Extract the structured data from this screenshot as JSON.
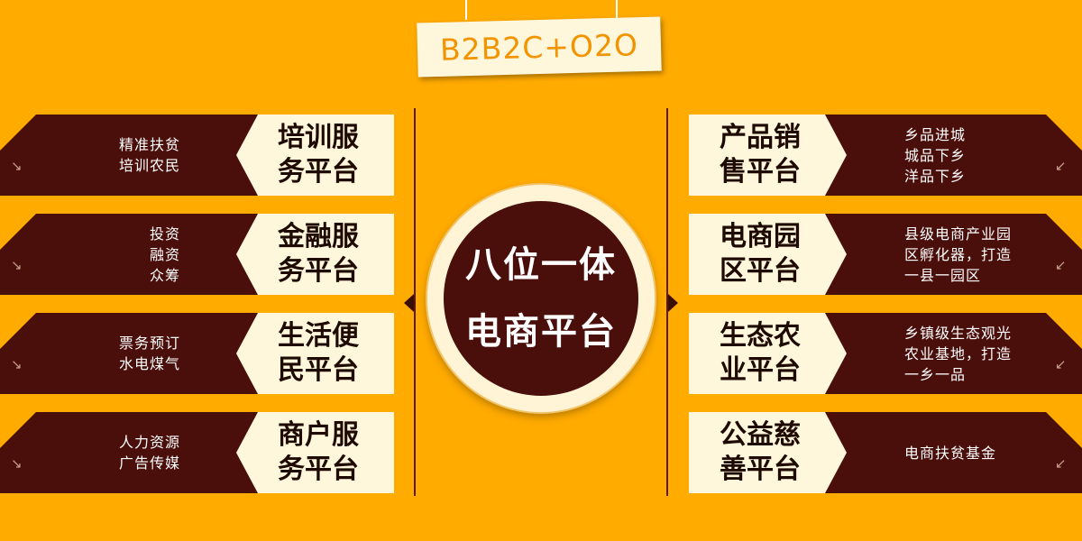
{
  "banner": "B2B2C+O2O",
  "center": {
    "line1": "八位一体",
    "line2": "电商平台"
  },
  "left": [
    {
      "title1": "培训服",
      "title2": "务平台",
      "desc": [
        "精准扶贫",
        "培训农民"
      ]
    },
    {
      "title1": "金融服",
      "title2": "务平台",
      "desc": [
        "投资",
        "融资",
        "众筹"
      ]
    },
    {
      "title1": "生活便",
      "title2": "民平台",
      "desc": [
        "票务预订",
        "水电煤气"
      ]
    },
    {
      "title1": "商户服",
      "title2": "务平台",
      "desc": [
        "人力资源",
        "广告传媒"
      ]
    }
  ],
  "right": [
    {
      "title1": "产品销",
      "title2": "售平台",
      "desc": [
        "乡品进城",
        "城品下乡",
        "洋品下乡"
      ]
    },
    {
      "title1": "电商园",
      "title2": "区平台",
      "desc": [
        "县级电商产业园",
        "区孵化器，打造",
        "一县一园区"
      ]
    },
    {
      "title1": "生态农",
      "title2": "业平台",
      "desc": [
        "乡镇级生态观光",
        "农业基地，打造",
        "一乡一品"
      ]
    },
    {
      "title1": "公益慈",
      "title2": "善平台",
      "desc": [
        "电商扶贫基金"
      ]
    }
  ],
  "corner_arrow_left": "↘",
  "corner_arrow_right": "↙",
  "colors": {
    "background": "#ffab00",
    "band": "#4a0e0b",
    "card": "#fff7dc",
    "banner_text": "#f29400"
  }
}
